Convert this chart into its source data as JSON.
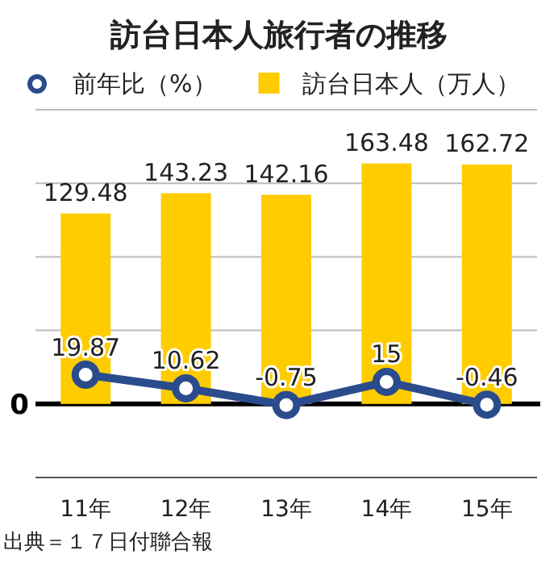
{
  "chart_data": {
    "type": "bar",
    "title": "訪台日本人旅行者の推移",
    "categories": [
      "11年",
      "12年",
      "13年",
      "14年",
      "15年"
    ],
    "series": [
      {
        "name": "前年比（%）",
        "type": "line",
        "color": "#2b4c8c",
        "marker": "circle",
        "values": [
          19.87,
          10.62,
          -0.75,
          15,
          -0.46
        ]
      },
      {
        "name": "訪台日本人（万人）",
        "color": "#ffcc00",
        "values": [
          129.48,
          143.23,
          142.16,
          163.48,
          162.72
        ]
      }
    ],
    "ylim": [
      -50,
      200
    ],
    "yticks": [
      {
        "value": -50,
        "label": null
      },
      {
        "value": 50,
        "label": null
      },
      {
        "value": 100,
        "label": null
      },
      {
        "value": 150,
        "label": null
      },
      {
        "value": 200,
        "label": null
      }
    ],
    "ref_lines": [
      {
        "axis": "y",
        "value": 0,
        "label": "0",
        "color": "#000000"
      }
    ],
    "grid": "y",
    "legend": "top",
    "data_labels": true,
    "annotations": [
      "出典＝１７日付聯合報"
    ]
  }
}
